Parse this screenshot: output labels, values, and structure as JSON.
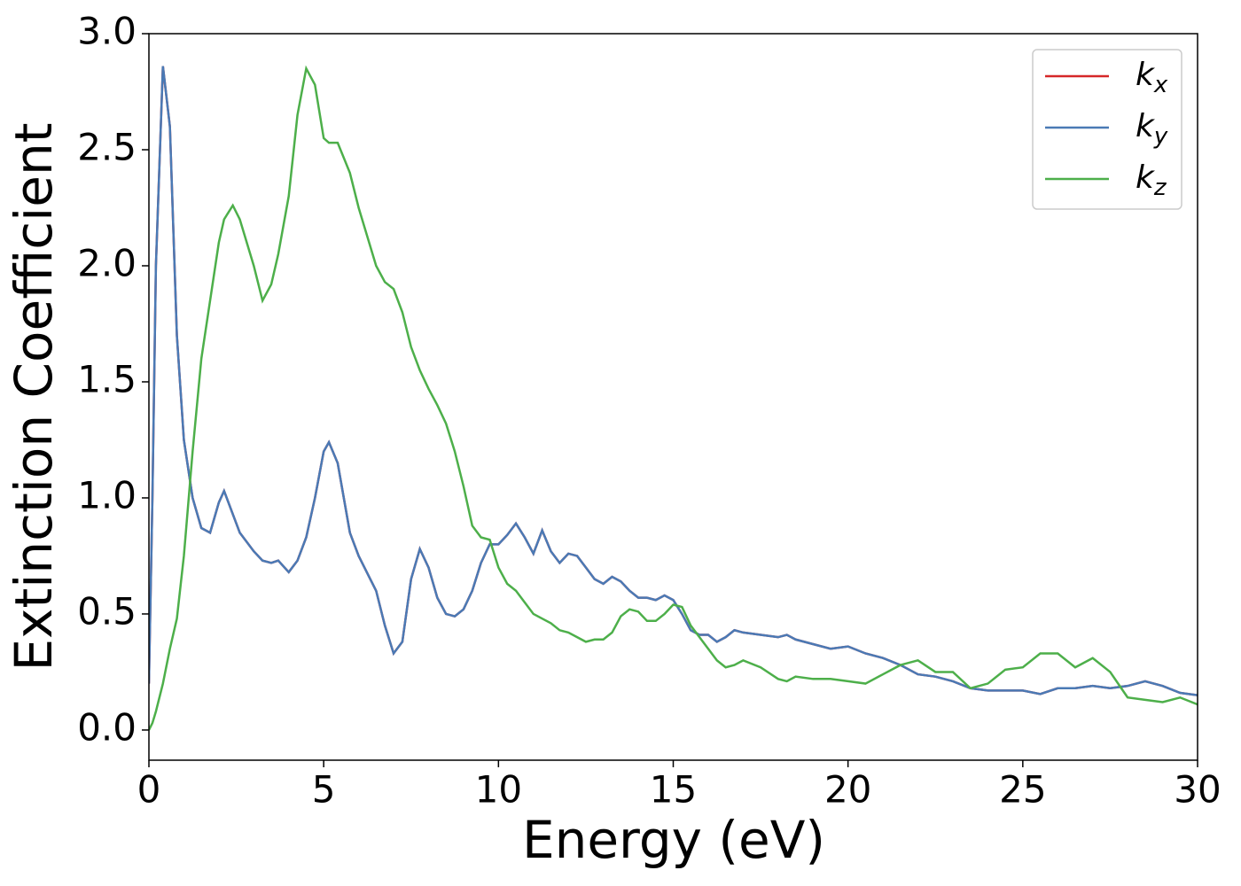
{
  "chart_data": {
    "type": "line",
    "xlabel": "Energy (eV)",
    "ylabel": "Extinction Coefficient",
    "x": [
      0,
      0.1,
      0.2,
      0.4,
      0.6,
      0.8,
      1,
      1.25,
      1.5,
      1.75,
      2,
      2.15,
      2.4,
      2.6,
      3,
      3.25,
      3.5,
      3.7,
      4,
      4.25,
      4.5,
      4.75,
      5,
      5.15,
      5.4,
      5.75,
      6,
      6.5,
      6.75,
      7,
      7.25,
      7.5,
      7.75,
      8,
      8.25,
      8.5,
      8.75,
      9,
      9.25,
      9.5,
      9.75,
      10,
      10.25,
      10.5,
      10.75,
      11,
      11.25,
      11.5,
      11.75,
      12,
      12.25,
      12.5,
      12.75,
      13,
      13.25,
      13.5,
      13.75,
      14,
      14.25,
      14.5,
      14.75,
      15,
      15.25,
      15.5,
      15.75,
      16,
      16.25,
      16.5,
      16.75,
      17,
      17.5,
      18,
      18.25,
      18.5,
      19,
      19.5,
      20,
      20.5,
      21,
      21.5,
      22,
      22.5,
      23,
      23.5,
      24,
      24.5,
      25,
      25.5,
      26,
      26.5,
      27,
      27.5,
      28,
      28.5,
      29,
      29.5,
      30
    ],
    "series": [
      {
        "name": "kx",
        "color": "#d62728",
        "values": [
          0.2,
          1.0,
          2.0,
          2.86,
          2.6,
          1.7,
          1.25,
          1.0,
          0.87,
          0.85,
          0.98,
          1.03,
          0.93,
          0.85,
          0.77,
          0.73,
          0.72,
          0.73,
          0.68,
          0.73,
          0.83,
          1.0,
          1.2,
          1.24,
          1.15,
          0.85,
          0.75,
          0.6,
          0.45,
          0.33,
          0.38,
          0.65,
          0.78,
          0.7,
          0.57,
          0.5,
          0.49,
          0.52,
          0.6,
          0.72,
          0.8,
          0.8,
          0.84,
          0.89,
          0.83,
          0.76,
          0.86,
          0.77,
          0.72,
          0.76,
          0.75,
          0.7,
          0.65,
          0.63,
          0.66,
          0.64,
          0.6,
          0.57,
          0.57,
          0.56,
          0.58,
          0.56,
          0.5,
          0.43,
          0.41,
          0.41,
          0.38,
          0.4,
          0.43,
          0.42,
          0.41,
          0.4,
          0.41,
          0.39,
          0.37,
          0.35,
          0.36,
          0.33,
          0.31,
          0.28,
          0.24,
          0.23,
          0.21,
          0.18,
          0.17,
          0.17,
          0.17,
          0.155,
          0.18,
          0.18,
          0.19,
          0.18,
          0.19,
          0.21,
          0.19,
          0.16,
          0.15
        ]
      },
      {
        "name": "ky",
        "color": "#4a7ab5",
        "values": [
          0.2,
          1.0,
          2.0,
          2.86,
          2.6,
          1.7,
          1.25,
          1.0,
          0.87,
          0.85,
          0.98,
          1.03,
          0.93,
          0.85,
          0.77,
          0.73,
          0.72,
          0.73,
          0.68,
          0.73,
          0.83,
          1.0,
          1.2,
          1.24,
          1.15,
          0.85,
          0.75,
          0.6,
          0.45,
          0.33,
          0.38,
          0.65,
          0.78,
          0.7,
          0.57,
          0.5,
          0.49,
          0.52,
          0.6,
          0.72,
          0.8,
          0.8,
          0.84,
          0.89,
          0.83,
          0.76,
          0.86,
          0.77,
          0.72,
          0.76,
          0.75,
          0.7,
          0.65,
          0.63,
          0.66,
          0.64,
          0.6,
          0.57,
          0.57,
          0.56,
          0.58,
          0.56,
          0.5,
          0.43,
          0.41,
          0.41,
          0.38,
          0.4,
          0.43,
          0.42,
          0.41,
          0.4,
          0.41,
          0.39,
          0.37,
          0.35,
          0.36,
          0.33,
          0.31,
          0.28,
          0.24,
          0.23,
          0.21,
          0.18,
          0.17,
          0.17,
          0.17,
          0.155,
          0.18,
          0.18,
          0.19,
          0.18,
          0.19,
          0.21,
          0.19,
          0.16,
          0.15
        ]
      },
      {
        "name": "kz",
        "color": "#4daf4a",
        "values": [
          0.0,
          0.03,
          0.08,
          0.2,
          0.35,
          0.48,
          0.75,
          1.2,
          1.6,
          1.85,
          2.1,
          2.2,
          2.26,
          2.2,
          2.0,
          1.85,
          1.92,
          2.05,
          2.3,
          2.65,
          2.85,
          2.78,
          2.55,
          2.53,
          2.53,
          2.4,
          2.25,
          2.0,
          1.93,
          1.9,
          1.8,
          1.65,
          1.55,
          1.47,
          1.4,
          1.32,
          1.2,
          1.05,
          0.88,
          0.83,
          0.82,
          0.7,
          0.63,
          0.6,
          0.55,
          0.5,
          0.48,
          0.46,
          0.43,
          0.42,
          0.4,
          0.38,
          0.39,
          0.39,
          0.42,
          0.49,
          0.52,
          0.51,
          0.47,
          0.47,
          0.5,
          0.54,
          0.53,
          0.45,
          0.4,
          0.35,
          0.3,
          0.27,
          0.28,
          0.3,
          0.27,
          0.22,
          0.21,
          0.23,
          0.22,
          0.22,
          0.21,
          0.2,
          0.24,
          0.28,
          0.3,
          0.25,
          0.25,
          0.18,
          0.2,
          0.26,
          0.27,
          0.33,
          0.33,
          0.27,
          0.31,
          0.25,
          0.14,
          0.13,
          0.12,
          0.14,
          0.11
        ]
      }
    ],
    "xlim": [
      0,
      30
    ],
    "xticks": [
      0,
      5,
      10,
      15,
      20,
      25,
      30
    ],
    "ylim": [
      -0.13,
      3.0
    ],
    "yticks": [
      {
        "value": 0,
        "label": "0.0"
      },
      0.5,
      {
        "value": 1,
        "label": "1.0"
      },
      1.5,
      {
        "value": 2,
        "label": "2.0"
      },
      2.5,
      {
        "value": 3,
        "label": "3.0"
      }
    ],
    "legend": "upper right"
  }
}
